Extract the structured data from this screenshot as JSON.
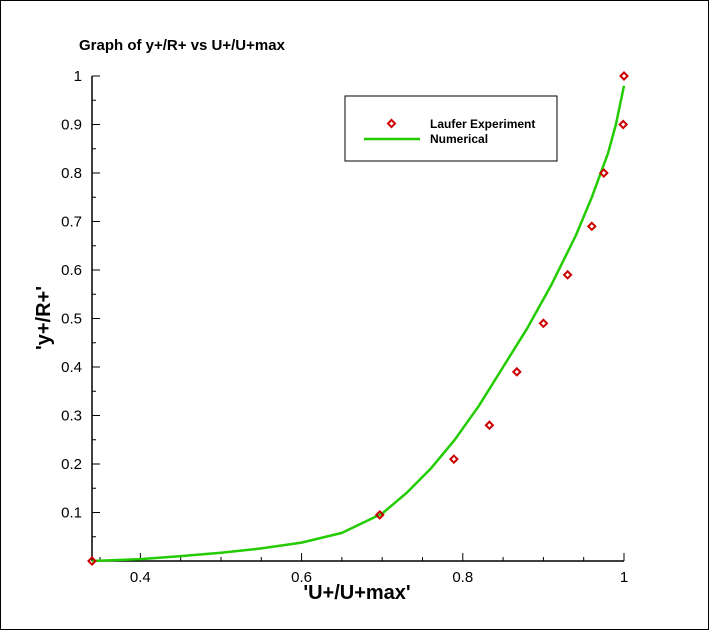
{
  "chart_data": {
    "type": "scatter",
    "title": "Graph of y+/R+ vs U+/U+max",
    "xlabel": "'U+/U+max'",
    "ylabel": "'y+/R+'",
    "xlim": [
      0.34,
      1.0
    ],
    "ylim": [
      0.0,
      1.0
    ],
    "x_ticks": [
      0.4,
      0.6,
      0.8,
      1.0
    ],
    "x_tick_labels": [
      "0.4",
      "0.6",
      "0.8",
      "1"
    ],
    "y_ticks": [
      0.1,
      0.2,
      0.3,
      0.4,
      0.5,
      0.6,
      0.7,
      0.8,
      0.9,
      1.0
    ],
    "y_tick_labels": [
      "0.1",
      "0.2",
      "0.3",
      "0.4",
      "0.5",
      "0.6",
      "0.7",
      "0.8",
      "0.9",
      "1"
    ],
    "grid": false,
    "legend_position": "top-right",
    "series": [
      {
        "name": "Laufer Experiment",
        "kind": "markers",
        "marker": "diamond",
        "color": "#cc0000",
        "x": [
          0.34,
          0.697,
          0.789,
          0.833,
          0.867,
          0.9,
          0.93,
          0.96,
          0.975,
          0.999,
          1.0
        ],
        "y": [
          0.0,
          0.095,
          0.21,
          0.28,
          0.39,
          0.49,
          0.59,
          0.69,
          0.8,
          0.9,
          1.0
        ]
      },
      {
        "name": "Numerical",
        "kind": "line",
        "color": "#22cc00",
        "x": [
          0.34,
          0.4,
          0.45,
          0.5,
          0.55,
          0.6,
          0.65,
          0.7,
          0.73,
          0.76,
          0.79,
          0.82,
          0.85,
          0.88,
          0.91,
          0.94,
          0.96,
          0.98,
          0.99,
          1.0
        ],
        "y": [
          0.0,
          0.004,
          0.01,
          0.017,
          0.026,
          0.038,
          0.058,
          0.098,
          0.14,
          0.19,
          0.25,
          0.32,
          0.4,
          0.48,
          0.57,
          0.67,
          0.75,
          0.84,
          0.9,
          0.98
        ]
      }
    ]
  }
}
